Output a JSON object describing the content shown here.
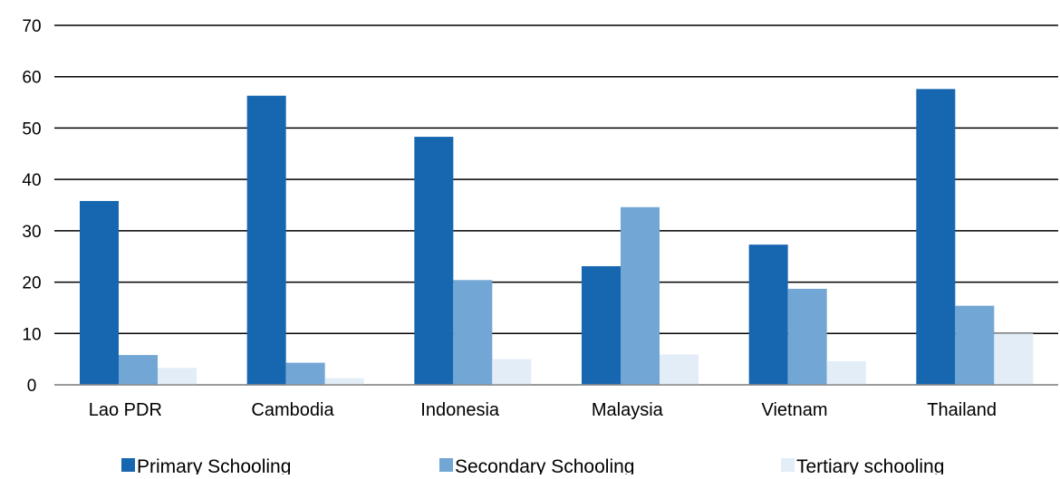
{
  "chart_data": {
    "type": "bar",
    "categories": [
      "Lao PDR",
      "Cambodia",
      "Indonesia",
      "Malaysia",
      "Vietnam",
      "Thailand"
    ],
    "series": [
      {
        "name": "Primary Schooling",
        "color": "#1767b0",
        "values": [
          35.8,
          56.3,
          48.3,
          23.1,
          27.3,
          57.6
        ]
      },
      {
        "name": "Secondary Schooling",
        "color": "#72a6d4",
        "values": [
          5.8,
          4.3,
          20.4,
          34.6,
          18.7,
          15.4
        ]
      },
      {
        "name": "Tertiary schooling",
        "color": "#e3edf7",
        "values": [
          3.3,
          1.3,
          5.0,
          5.9,
          4.6,
          10.0
        ]
      }
    ],
    "ylim": [
      0,
      70
    ],
    "yticks": [
      0,
      10,
      20,
      30,
      40,
      50,
      60,
      70
    ],
    "grid": true,
    "legend": "bottom",
    "title": "",
    "xlabel": "",
    "ylabel": ""
  }
}
